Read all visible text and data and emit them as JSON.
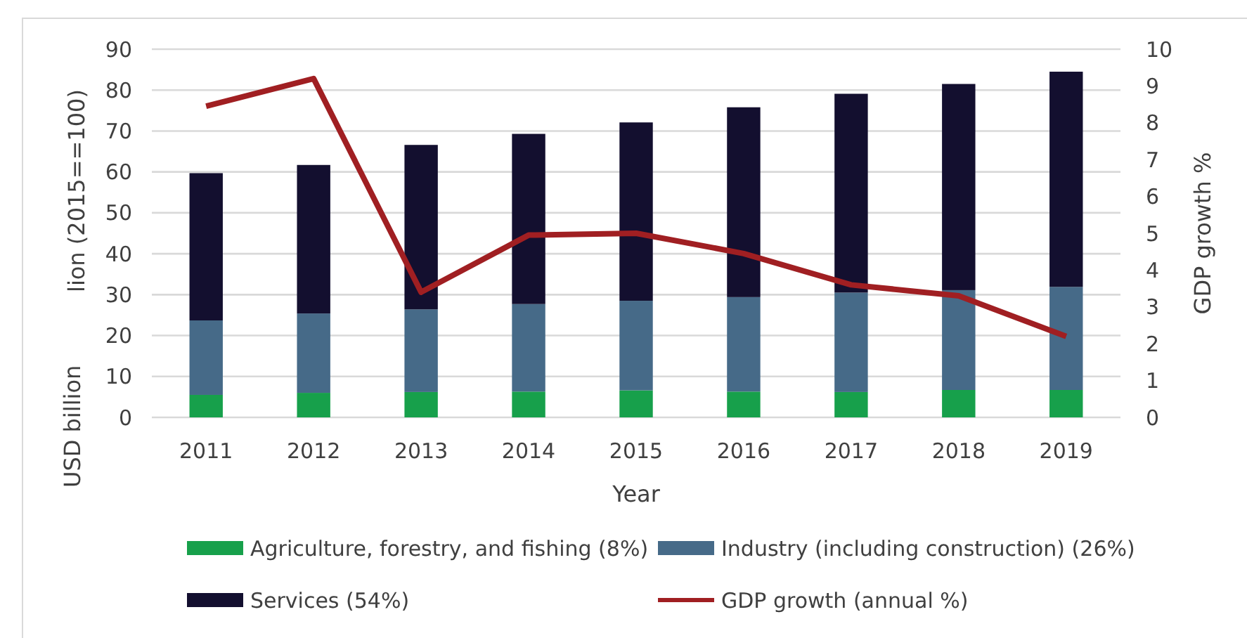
{
  "chart_data": {
    "type": "bar",
    "stacked": true,
    "xlabel": "Year",
    "ylabel": "USD billion",
    "y2label": "GDP growth %",
    "annotations": [
      "lion (2015==100)"
    ],
    "categories": [
      "2011",
      "2012",
      "2013",
      "2014",
      "2015",
      "2016",
      "2017",
      "2018",
      "2019"
    ],
    "series": [
      {
        "name": "Agriculture, forestry, and fishing (8%)",
        "color": "#17a04b",
        "values": [
          5.5,
          6,
          6.2,
          6.3,
          6.6,
          6.3,
          6.2,
          6.7,
          6.7
        ]
      },
      {
        "name": "Industry (including construction) (26%)",
        "color": "#466a88",
        "values": [
          18.2,
          19.4,
          20.2,
          21.4,
          21.9,
          23.1,
          24.3,
          24.4,
          25.2
        ]
      },
      {
        "name": "Services (54%)",
        "color": "#130f2f",
        "values": [
          36,
          36.3,
          40.2,
          41.6,
          43.6,
          46.4,
          48.6,
          50.4,
          52.6
        ]
      },
      {
        "name": "GDP growth (annual %)",
        "type": "line",
        "axis": "y2",
        "color": "#a01f22",
        "values": [
          8.45,
          9.2,
          3.4,
          4.95,
          5.0,
          4.45,
          3.6,
          3.3,
          2.2
        ]
      }
    ],
    "ylim": [
      0,
      90
    ],
    "yticks": [
      0,
      10,
      20,
      30,
      40,
      50,
      60,
      70,
      80,
      90
    ],
    "y2lim": [
      0,
      10
    ],
    "y2ticks": [
      0,
      1,
      2,
      3,
      4,
      5,
      6,
      7,
      8,
      9,
      10
    ],
    "grid": "y",
    "legend": "bottom",
    "marker": "none"
  }
}
